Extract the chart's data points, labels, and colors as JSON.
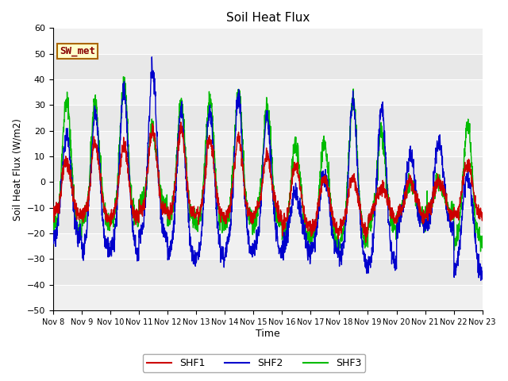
{
  "title": "Soil Heat Flux",
  "ylabel": "Soil Heat Flux (W/m2)",
  "xlabel": "Time",
  "ylim": [
    -50,
    60
  ],
  "yticks": [
    -50,
    -40,
    -30,
    -20,
    -10,
    0,
    10,
    20,
    30,
    40,
    50,
    60
  ],
  "colors": {
    "SHF1": "#cc0000",
    "SHF2": "#0000cc",
    "SHF3": "#00bb00"
  },
  "annotation_text": "SW_met",
  "annotation_bg": "#ffffcc",
  "annotation_border": "#aa6600",
  "annotation_text_color": "#880000",
  "background_color": "#ffffff",
  "plot_bg_color": "#e8e8e8",
  "grid_color": "#ffffff",
  "lighter_band_color": "#f0f0f0",
  "n_days": 15,
  "xtick_labels": [
    "Nov 8",
    "Nov 9",
    "Nov 10",
    "Nov 11",
    "Nov 12",
    "Nov 13",
    "Nov 14",
    "Nov 15",
    "Nov 16",
    "Nov 17",
    "Nov 18",
    "Nov 19",
    "Nov 20",
    "Nov 21",
    "Nov 22",
    "Nov 23"
  ],
  "line_width": 1.0,
  "day_peaks_shf2": [
    27,
    37,
    45,
    53,
    38,
    39,
    43,
    35,
    5,
    12,
    43,
    41,
    17,
    23,
    15,
    40
  ],
  "day_peaks_shf3": [
    40,
    37,
    45,
    25,
    37,
    39,
    42,
    35,
    23,
    24,
    41,
    25,
    5,
    5,
    32,
    40
  ],
  "day_peaks_shf1": [
    13,
    21,
    20,
    25,
    26,
    22,
    23,
    15,
    13,
    9,
    9,
    3,
    5,
    5,
    12,
    15
  ],
  "night_base_shf2": [
    -25,
    -31,
    -31,
    -25,
    -34,
    -34,
    -31,
    -31,
    -31,
    -31,
    -36,
    -37,
    -20,
    -20,
    -40,
    -40
  ],
  "night_base_shf3": [
    -22,
    -18,
    -18,
    -11,
    -18,
    -18,
    -18,
    -18,
    -25,
    -27,
    -27,
    -20,
    -16,
    -14,
    -29,
    -29
  ],
  "night_base_shf1": [
    -15,
    -16,
    -16,
    -13,
    -15,
    -15,
    -16,
    -15,
    -20,
    -22,
    -22,
    -16,
    -15,
    -15,
    -15,
    -15
  ]
}
